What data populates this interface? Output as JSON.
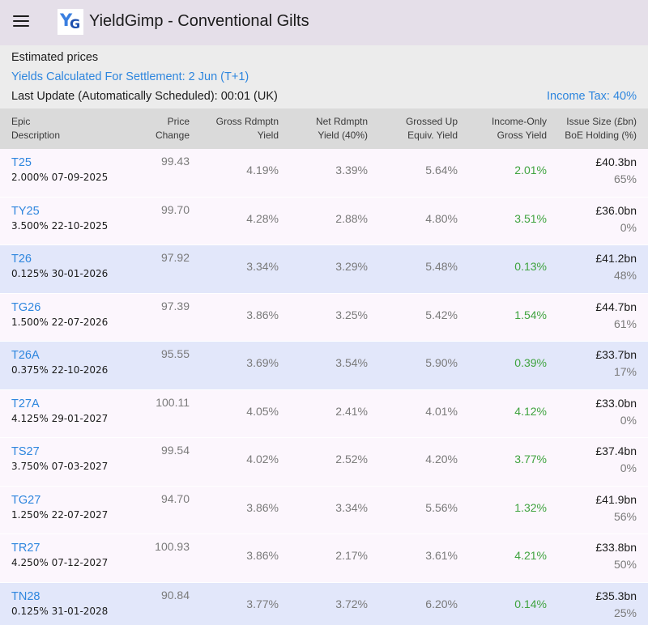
{
  "app": {
    "title": "YieldGimp - Conventional Gilts",
    "logo_text_y": "Y",
    "logo_text_g": "G"
  },
  "info": {
    "estimated": "Estimated prices",
    "settlement": "Yields Calculated For Settlement: 2 Jun (T+1)",
    "last_update": "Last Update (Automatically Scheduled): 00:01 (UK)",
    "income_tax": "Income Tax: 40%"
  },
  "headers": {
    "epic": "Epic",
    "description": "Description",
    "price": "Price",
    "change": "Change",
    "gross_rdmptn": "Gross Rdmptn",
    "gross_yield": "Yield",
    "net_rdmptn": "Net Rdmptn",
    "net_yield": "Yield (40%)",
    "grossed_up": "Grossed Up",
    "equiv_yield": "Equiv. Yield",
    "income_only": "Income-Only",
    "income_gross": "Gross Yield",
    "issue_size": "Issue Size (£bn)",
    "boe_holding": "BoE Holding (%)"
  },
  "rows": [
    {
      "epic": "T25",
      "desc": "2.000% 07-09-2025",
      "price": "99.43",
      "gross": "4.19%",
      "net": "3.39%",
      "grossed": "5.64%",
      "income": "2.01%",
      "issue": "£40.3bn",
      "boe": "65%"
    },
    {
      "epic": "TY25",
      "desc": "3.500% 22-10-2025",
      "price": "99.70",
      "gross": "4.28%",
      "net": "2.88%",
      "grossed": "4.80%",
      "income": "3.51%",
      "issue": "£36.0bn",
      "boe": "0%"
    },
    {
      "epic": "T26",
      "desc": "0.125% 30-01-2026",
      "price": "97.92",
      "gross": "3.34%",
      "net": "3.29%",
      "grossed": "5.48%",
      "income": "0.13%",
      "issue": "£41.2bn",
      "boe": "48%"
    },
    {
      "epic": "TG26",
      "desc": "1.500% 22-07-2026",
      "price": "97.39",
      "gross": "3.86%",
      "net": "3.25%",
      "grossed": "5.42%",
      "income": "1.54%",
      "issue": "£44.7bn",
      "boe": "61%"
    },
    {
      "epic": "T26A",
      "desc": "0.375% 22-10-2026",
      "price": "95.55",
      "gross": "3.69%",
      "net": "3.54%",
      "grossed": "5.90%",
      "income": "0.39%",
      "issue": "£33.7bn",
      "boe": "17%"
    },
    {
      "epic": "T27A",
      "desc": "4.125% 29-01-2027",
      "price": "100.11",
      "gross": "4.05%",
      "net": "2.41%",
      "grossed": "4.01%",
      "income": "4.12%",
      "issue": "£33.0bn",
      "boe": "0%"
    },
    {
      "epic": "TS27",
      "desc": "3.750% 07-03-2027",
      "price": "99.54",
      "gross": "4.02%",
      "net": "2.52%",
      "grossed": "4.20%",
      "income": "3.77%",
      "issue": "£37.4bn",
      "boe": "0%"
    },
    {
      "epic": "TG27",
      "desc": "1.250% 22-07-2027",
      "price": "94.70",
      "gross": "3.86%",
      "net": "3.34%",
      "grossed": "5.56%",
      "income": "1.32%",
      "issue": "£41.9bn",
      "boe": "56%"
    },
    {
      "epic": "TR27",
      "desc": "4.250% 07-12-2027",
      "price": "100.93",
      "gross": "3.86%",
      "net": "2.17%",
      "grossed": "3.61%",
      "income": "4.21%",
      "issue": "£33.8bn",
      "boe": "50%"
    },
    {
      "epic": "TN28",
      "desc": "0.125% 31-01-2028",
      "price": "90.84",
      "gross": "3.77%",
      "net": "3.72%",
      "grossed": "6.20%",
      "income": "0.14%",
      "issue": "£35.3bn",
      "boe": "25%"
    }
  ],
  "colors": {
    "appbar": "#e5dfe9",
    "link": "#2e86de",
    "positive": "#3fa33f",
    "row_pink": "#fcf6fd",
    "row_blue": "#e2e7fa"
  }
}
